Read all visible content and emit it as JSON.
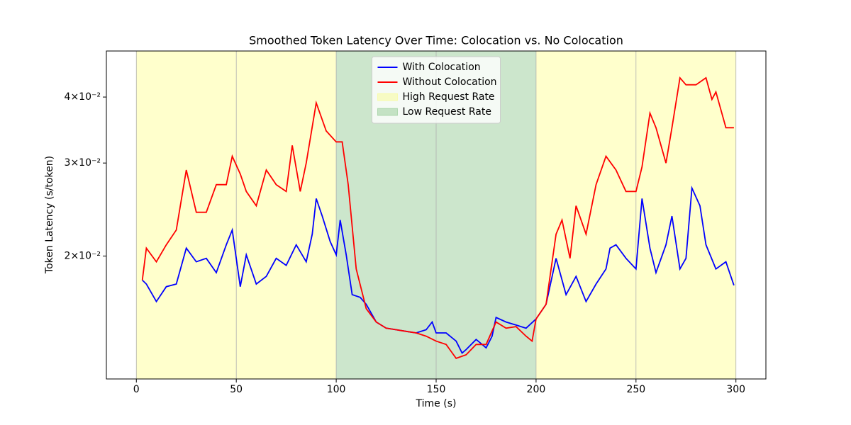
{
  "chart_data": {
    "type": "line",
    "title": "Smoothed Token Latency Over Time: Colocation vs. No Colocation",
    "xlabel": "Time (s)",
    "ylabel": "Token Latency (s/token)",
    "xlim": [
      -15,
      315
    ],
    "xticks": [
      0,
      50,
      100,
      150,
      200,
      250,
      300
    ],
    "ylim": [
      0.0117,
      0.0489
    ],
    "yscale": "log",
    "yticks": [
      {
        "value": 0.02,
        "label": "2×10⁻²"
      },
      {
        "value": 0.03,
        "label": "3×10⁻²"
      },
      {
        "value": 0.04,
        "label": "4×10⁻²"
      }
    ],
    "grid": "x",
    "legend": "upper center",
    "spans": [
      {
        "name": "High Request Rate",
        "color": "yellow",
        "alpha": 0.2,
        "ranges": [
          [
            0,
            100
          ],
          [
            200,
            300
          ]
        ]
      },
      {
        "name": "Low Request Rate",
        "color": "green",
        "alpha": 0.2,
        "ranges": [
          [
            100,
            200
          ]
        ]
      }
    ],
    "series": [
      {
        "name": "With Colocation",
        "color": "#0000ff",
        "x": [
          3,
          5,
          10,
          15,
          20,
          25,
          30,
          35,
          40,
          45,
          48,
          52,
          55,
          60,
          65,
          70,
          75,
          80,
          85,
          88,
          90,
          93,
          97,
          100,
          102,
          105,
          108,
          112,
          115,
          120,
          125,
          130,
          135,
          140,
          145,
          148,
          150,
          155,
          160,
          163,
          165,
          170,
          175,
          178,
          180,
          185,
          190,
          195,
          200,
          205,
          210,
          215,
          220,
          225,
          230,
          235,
          237,
          240,
          245,
          250,
          253,
          257,
          260,
          265,
          268,
          272,
          275,
          278,
          282,
          285,
          290,
          295,
          299
        ],
        "values": [
          0.018,
          0.0177,
          0.0164,
          0.0175,
          0.0177,
          0.0207,
          0.0195,
          0.0198,
          0.0186,
          0.021,
          0.0224,
          0.0175,
          0.0201,
          0.0177,
          0.0183,
          0.0198,
          0.0192,
          0.021,
          0.0195,
          0.022,
          0.0257,
          0.0238,
          0.0213,
          0.0201,
          0.0234,
          0.0201,
          0.0169,
          0.0167,
          0.0162,
          0.015,
          0.0146,
          0.0145,
          0.0144,
          0.0143,
          0.0145,
          0.015,
          0.0143,
          0.0143,
          0.0138,
          0.0131,
          0.0133,
          0.0139,
          0.0134,
          0.0141,
          0.0153,
          0.015,
          0.0148,
          0.0146,
          0.0152,
          0.0162,
          0.0198,
          0.0169,
          0.0183,
          0.0164,
          0.0177,
          0.0189,
          0.0207,
          0.021,
          0.0198,
          0.0189,
          0.0257,
          0.0207,
          0.0186,
          0.021,
          0.0238,
          0.0189,
          0.0198,
          0.0269,
          0.0249,
          0.021,
          0.0189,
          0.0195,
          0.0176
        ]
      },
      {
        "name": "Without Colocation",
        "color": "#ff0000",
        "x": [
          3,
          5,
          10,
          15,
          20,
          25,
          30,
          35,
          40,
          45,
          48,
          52,
          55,
          60,
          65,
          70,
          75,
          78,
          82,
          85,
          90,
          95,
          100,
          103,
          106,
          110,
          115,
          120,
          125,
          130,
          135,
          140,
          145,
          150,
          155,
          160,
          165,
          170,
          175,
          180,
          185,
          190,
          195,
          198,
          200,
          205,
          210,
          213,
          217,
          220,
          225,
          230,
          235,
          240,
          245,
          250,
          253,
          257,
          260,
          265,
          268,
          272,
          275,
          280,
          285,
          288,
          290,
          295,
          299
        ],
        "values": [
          0.018,
          0.0207,
          0.0195,
          0.021,
          0.0224,
          0.0291,
          0.0242,
          0.0242,
          0.0273,
          0.0273,
          0.0309,
          0.0286,
          0.0265,
          0.0249,
          0.0291,
          0.0273,
          0.0265,
          0.0324,
          0.0265,
          0.03,
          0.039,
          0.0345,
          0.0329,
          0.0329,
          0.0273,
          0.0189,
          0.0159,
          0.015,
          0.0146,
          0.0145,
          0.0144,
          0.0143,
          0.0141,
          0.0138,
          0.0136,
          0.0128,
          0.013,
          0.0136,
          0.0136,
          0.015,
          0.0146,
          0.0147,
          0.0141,
          0.0138,
          0.0152,
          0.0162,
          0.022,
          0.0234,
          0.0198,
          0.0249,
          0.022,
          0.0273,
          0.0309,
          0.0291,
          0.0265,
          0.0265,
          0.0295,
          0.0373,
          0.035,
          0.03,
          0.035,
          0.0435,
          0.0422,
          0.0422,
          0.0435,
          0.0396,
          0.0409,
          0.035,
          0.035
        ]
      }
    ]
  }
}
